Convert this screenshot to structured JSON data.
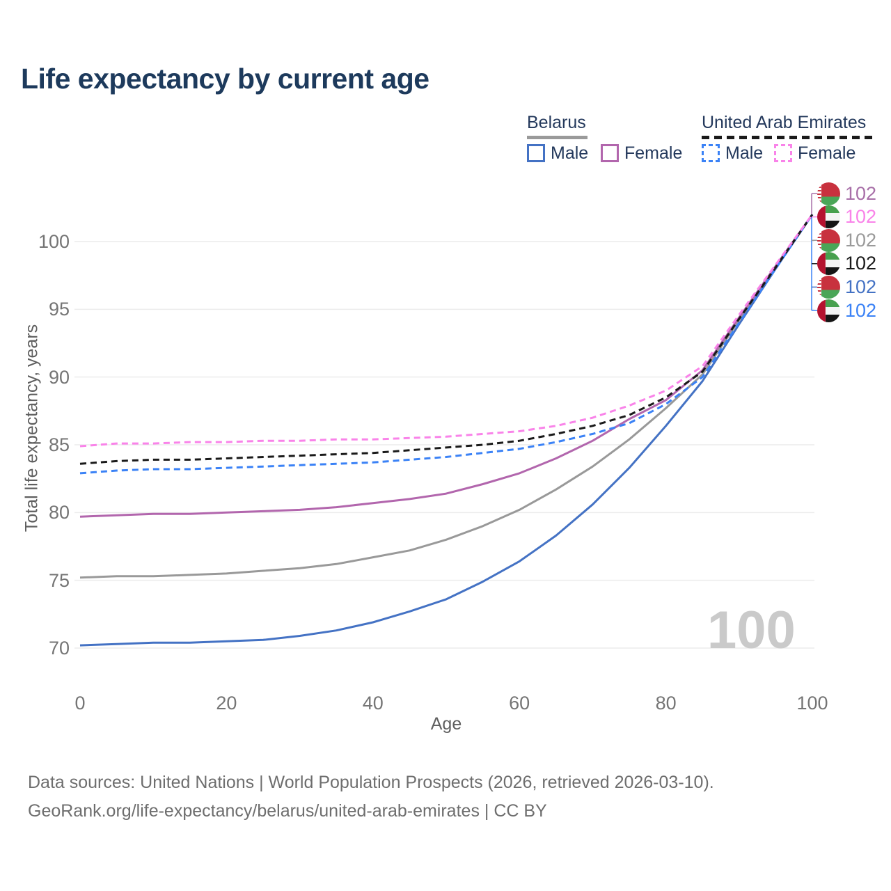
{
  "title": "Life expectancy by current age",
  "legend": {
    "groups": [
      {
        "label": "Belarus",
        "line_color": "#9a9a9a",
        "line_style": "solid"
      },
      {
        "label": "United Arab Emirates",
        "line_color": "#1a1a1a",
        "line_style": "dashed"
      }
    ],
    "items": [
      {
        "group": "Belarus",
        "label": "Male",
        "color": "#4472c4",
        "style": "solid"
      },
      {
        "group": "Belarus",
        "label": "Female",
        "color": "#b266ad",
        "style": "solid"
      },
      {
        "group": "United Arab Emirates",
        "label": "Male",
        "color": "#3b82f6",
        "style": "dashed"
      },
      {
        "group": "United Arab Emirates",
        "label": "Female",
        "color": "#f983e9",
        "style": "dashed"
      }
    ]
  },
  "chart_data": {
    "type": "line",
    "title": "Life expectancy by current age",
    "xlabel": "Age",
    "ylabel": "Total life expectancy, years",
    "x_ticks": [
      0,
      20,
      40,
      60,
      80,
      100
    ],
    "y_ticks": [
      70,
      75,
      80,
      85,
      90,
      95,
      100
    ],
    "xlim": [
      0,
      100
    ],
    "ylim": [
      68.5,
      103
    ],
    "grid": "horizontal",
    "legend_position": "top-right",
    "ages": [
      0,
      5,
      10,
      15,
      20,
      25,
      30,
      35,
      40,
      45,
      50,
      55,
      60,
      65,
      70,
      75,
      80,
      85,
      90,
      95,
      100
    ],
    "series": [
      {
        "id": "belarus-both",
        "country": "Belarus",
        "sex": "Both",
        "color": "#999999",
        "style": "solid",
        "values": [
          75.2,
          75.3,
          75.3,
          75.4,
          75.5,
          75.7,
          75.9,
          76.2,
          76.7,
          77.2,
          78.0,
          79.0,
          80.2,
          81.7,
          83.4,
          85.4,
          87.7,
          90.2,
          94.2,
          98.1,
          102
        ]
      },
      {
        "id": "belarus-female",
        "country": "Belarus",
        "sex": "Female",
        "color": "#b266ad",
        "style": "solid",
        "values": [
          79.7,
          79.8,
          79.9,
          79.9,
          80.0,
          80.1,
          80.2,
          80.4,
          80.7,
          81.0,
          81.4,
          82.1,
          82.9,
          84.0,
          85.3,
          86.9,
          88.3,
          90.5,
          94.4,
          98.2,
          102
        ]
      },
      {
        "id": "belarus-male",
        "country": "Belarus",
        "sex": "Male",
        "color": "#4472c4",
        "style": "solid",
        "values": [
          70.2,
          70.3,
          70.4,
          70.4,
          70.5,
          70.6,
          70.9,
          71.3,
          71.9,
          72.7,
          73.6,
          74.9,
          76.4,
          78.3,
          80.6,
          83.3,
          86.4,
          89.7,
          93.9,
          98.0,
          102
        ]
      },
      {
        "id": "uae-male",
        "country": "United Arab Emirates",
        "sex": "Male",
        "color": "#3b82f6",
        "style": "dashed",
        "values": [
          82.9,
          83.1,
          83.2,
          83.2,
          83.3,
          83.4,
          83.5,
          83.6,
          83.7,
          83.9,
          84.1,
          84.4,
          84.7,
          85.2,
          85.8,
          86.6,
          88.0,
          90.0,
          94.0,
          98.0,
          102
        ]
      },
      {
        "id": "uae-both",
        "country": "United Arab Emirates",
        "sex": "Both",
        "color": "#1a1a1a",
        "style": "dashed",
        "values": [
          83.6,
          83.8,
          83.9,
          83.9,
          84.0,
          84.1,
          84.2,
          84.3,
          84.4,
          84.6,
          84.8,
          85.0,
          85.3,
          85.8,
          86.4,
          87.2,
          88.5,
          90.4,
          94.3,
          98.1,
          102
        ]
      },
      {
        "id": "uae-female",
        "country": "United Arab Emirates",
        "sex": "Female",
        "color": "#f983e9",
        "style": "dashed",
        "values": [
          84.9,
          85.1,
          85.1,
          85.2,
          85.2,
          85.3,
          85.3,
          85.4,
          85.4,
          85.5,
          85.6,
          85.8,
          86.0,
          86.4,
          87.0,
          87.9,
          89.0,
          90.8,
          94.6,
          98.3,
          102
        ]
      }
    ]
  },
  "end_labels": [
    {
      "flag": "belarus",
      "series": "Belarus Female",
      "value": "102",
      "color": "#a86fa8"
    },
    {
      "flag": "uae",
      "series": "United Arab Emirates Female",
      "value": "102",
      "color": "#f983e9"
    },
    {
      "flag": "belarus",
      "series": "Belarus Both",
      "value": "102",
      "color": "#9a9a9a"
    },
    {
      "flag": "uae",
      "series": "United Arab Emirates Both",
      "value": "102",
      "color": "#1a1a1a"
    },
    {
      "flag": "belarus",
      "series": "Belarus Male",
      "value": "102",
      "color": "#4472c4"
    },
    {
      "flag": "uae",
      "series": "United Arab Emirates Male",
      "value": "102",
      "color": "#3b82f6"
    }
  ],
  "watermark": "100",
  "footer": {
    "line1": "Data sources: United Nations | World Population Prospects (2026, retrieved 2026-03-10).",
    "line2": "GeoRank.org/life-expectancy/belarus/united-arab-emirates | CC BY"
  }
}
